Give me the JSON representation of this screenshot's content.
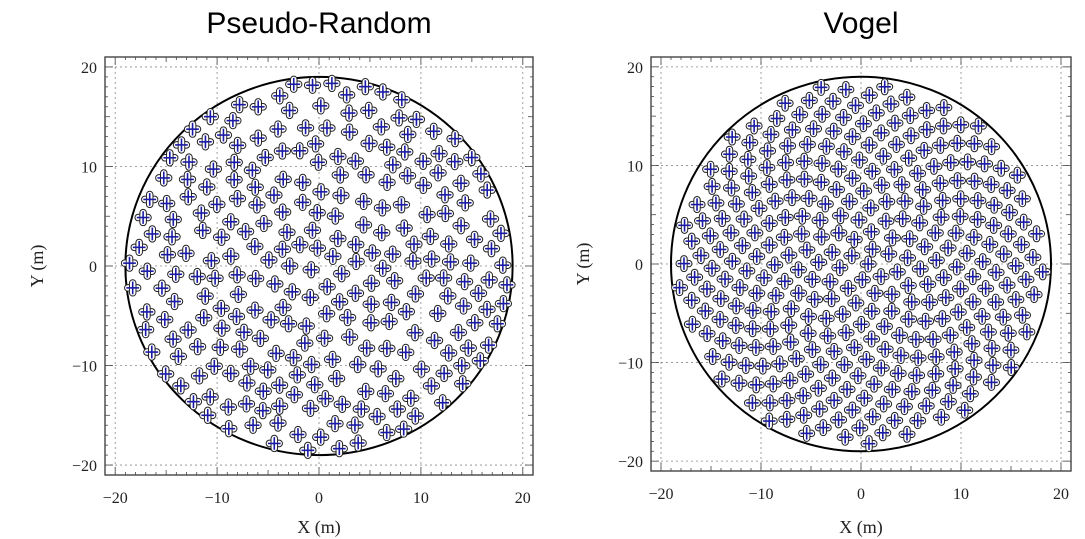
{
  "chart_data": [
    {
      "type": "scatter",
      "title": "Pseudo-Random",
      "xlabel": "X (m)",
      "ylabel": "Y (m)",
      "xlim": [
        -21,
        21
      ],
      "ylim": [
        -21,
        21
      ],
      "x_ticks": [
        -20,
        -10,
        0,
        10,
        20
      ],
      "y_ticks": [
        -20,
        -10,
        0,
        10,
        20
      ],
      "x_tick_labels": [
        "-20",
        "-10",
        "0",
        "10",
        "20"
      ],
      "y_tick_labels": [
        "-20",
        "-10",
        "0",
        "10",
        "20"
      ],
      "grid": true,
      "boundary_circle_radius": 19,
      "layout_pattern": "pseudo-random",
      "approx_point_count": 330
    },
    {
      "type": "scatter",
      "title": "Vogel",
      "xlabel": "X (m)",
      "ylabel": "Y (m)",
      "xlim": [
        -21,
        21
      ],
      "ylim": [
        -21,
        21
      ],
      "x_ticks": [
        -20,
        -10,
        0,
        10,
        20
      ],
      "y_ticks": [
        -20,
        -10,
        0,
        10,
        20
      ],
      "x_tick_labels": [
        "-20",
        "-10",
        "0",
        "10",
        "20"
      ],
      "y_tick_labels": [
        "-20",
        "-10",
        "0",
        "10",
        "20"
      ],
      "grid": true,
      "boundary_circle_radius": 19,
      "layout_pattern": "vogel-spiral",
      "approx_point_count": 330
    }
  ],
  "colors": {
    "marker_cross": "#1a1aa6",
    "marker_outline": "#222222",
    "circle": "#000000",
    "grid": "#888888"
  }
}
